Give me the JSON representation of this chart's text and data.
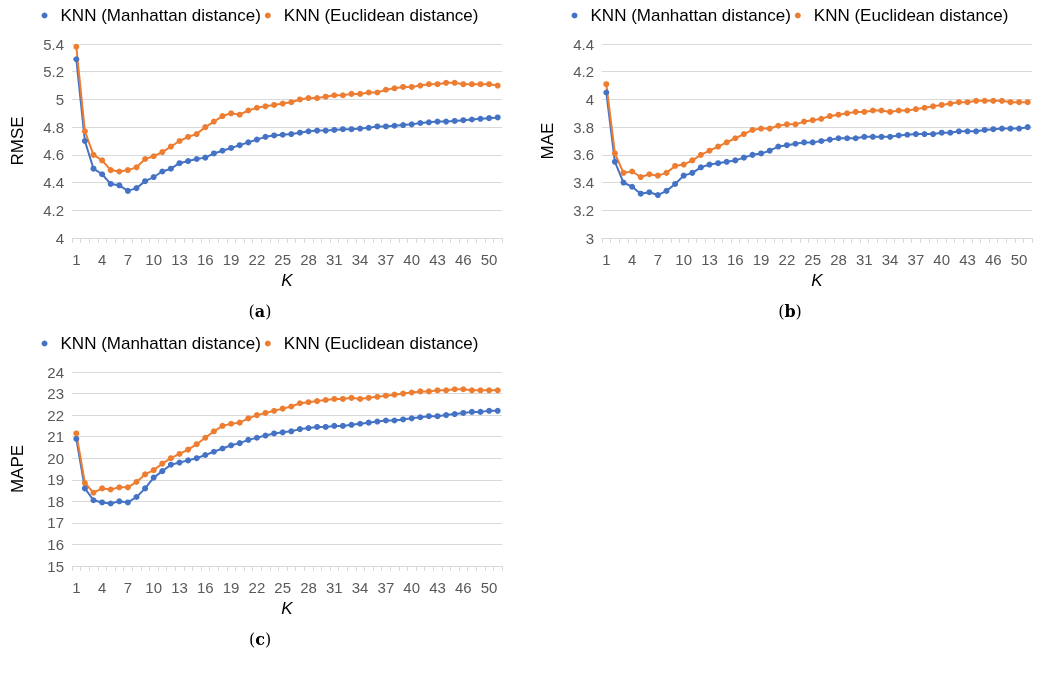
{
  "chart_data": [
    {
      "type": "line",
      "ylabel": "RMSE",
      "xlabel": "K",
      "annotations": [
        "(a)"
      ],
      "legend": "top",
      "grid": "y",
      "marker": "circle",
      "line_style": "solid",
      "categories": [
        "1",
        null,
        null,
        "4",
        null,
        null,
        "7",
        null,
        null,
        "10",
        null,
        null,
        "13",
        null,
        null,
        "16",
        null,
        null,
        "19",
        null,
        null,
        "22",
        null,
        null,
        "25",
        null,
        null,
        "28",
        null,
        null,
        "31",
        null,
        null,
        "34",
        null,
        null,
        "37",
        null,
        null,
        "40",
        null,
        null,
        "43",
        null,
        null,
        "46",
        null,
        null,
        "50",
        null
      ],
      "ylim": [
        4,
        5.4
      ],
      "yticks": [
        4,
        4.2,
        4.4,
        4.6,
        4.8,
        5,
        5.2,
        5.4
      ],
      "series": [
        {
          "name": "KNN (Manhattan distance)",
          "color": "#4472c4",
          "values": [
            5.29,
            4.7,
            4.5,
            4.46,
            4.39,
            4.38,
            4.34,
            4.36,
            4.41,
            4.44,
            4.48,
            4.5,
            4.54,
            4.555,
            4.57,
            4.58,
            4.61,
            4.63,
            4.65,
            4.67,
            4.69,
            4.71,
            4.73,
            4.74,
            4.745,
            4.75,
            4.76,
            4.77,
            4.775,
            4.775,
            4.78,
            4.785,
            4.785,
            4.79,
            4.795,
            4.805,
            4.805,
            4.81,
            4.815,
            4.82,
            4.83,
            4.835,
            4.84,
            4.84,
            4.845,
            4.85,
            4.855,
            4.86,
            4.865,
            4.87
          ]
        },
        {
          "name": "KNN (Euclidean distance)",
          "color": "#ed7d31",
          "values": [
            5.38,
            4.77,
            4.6,
            4.56,
            4.49,
            4.48,
            4.49,
            4.51,
            4.57,
            4.59,
            4.62,
            4.66,
            4.7,
            4.73,
            4.75,
            4.8,
            4.84,
            4.88,
            4.9,
            4.89,
            4.92,
            4.94,
            4.95,
            4.96,
            4.97,
            4.98,
            5.0,
            5.01,
            5.01,
            5.02,
            5.03,
            5.03,
            5.04,
            5.04,
            5.05,
            5.05,
            5.07,
            5.08,
            5.09,
            5.09,
            5.1,
            5.11,
            5.11,
            5.12,
            5.12,
            5.11,
            5.11,
            5.11,
            5.11,
            5.1
          ]
        }
      ]
    },
    {
      "type": "line",
      "ylabel": "MAE",
      "xlabel": "K",
      "annotations": [
        "(b)"
      ],
      "legend": "top",
      "grid": "y",
      "marker": "circle",
      "line_style": "solid",
      "categories": [
        "1",
        null,
        null,
        "4",
        null,
        null,
        "7",
        null,
        null,
        "10",
        null,
        null,
        "13",
        null,
        null,
        "16",
        null,
        null,
        "19",
        null,
        null,
        "22",
        null,
        null,
        "25",
        null,
        null,
        "28",
        null,
        null,
        "31",
        null,
        null,
        "34",
        null,
        null,
        "37",
        null,
        null,
        "40",
        null,
        null,
        "43",
        null,
        null,
        "46",
        null,
        null,
        "50",
        null
      ],
      "ylim": [
        3,
        4.4
      ],
      "yticks": [
        3,
        3.2,
        3.4,
        3.6,
        3.8,
        4,
        4.2,
        4.4
      ],
      "series": [
        {
          "name": "KNN (Manhattan distance)",
          "color": "#4472c4",
          "values": [
            4.05,
            3.55,
            3.4,
            3.37,
            3.32,
            3.33,
            3.31,
            3.34,
            3.39,
            3.45,
            3.47,
            3.51,
            3.53,
            3.54,
            3.55,
            3.56,
            3.58,
            3.6,
            3.61,
            3.63,
            3.66,
            3.67,
            3.68,
            3.69,
            3.69,
            3.7,
            3.71,
            3.72,
            3.72,
            3.72,
            3.73,
            3.73,
            3.73,
            3.73,
            3.74,
            3.745,
            3.75,
            3.75,
            3.75,
            3.76,
            3.76,
            3.77,
            3.77,
            3.77,
            3.78,
            3.785,
            3.79,
            3.79,
            3.79,
            3.8
          ]
        },
        {
          "name": "KNN (Euclidean distance)",
          "color": "#ed7d31",
          "values": [
            4.11,
            3.61,
            3.47,
            3.48,
            3.44,
            3.46,
            3.45,
            3.47,
            3.52,
            3.53,
            3.56,
            3.6,
            3.63,
            3.66,
            3.69,
            3.72,
            3.75,
            3.78,
            3.79,
            3.79,
            3.81,
            3.82,
            3.82,
            3.84,
            3.85,
            3.86,
            3.88,
            3.89,
            3.9,
            3.91,
            3.91,
            3.92,
            3.92,
            3.91,
            3.92,
            3.92,
            3.93,
            3.94,
            3.95,
            3.96,
            3.97,
            3.98,
            3.98,
            3.99,
            3.99,
            3.99,
            3.99,
            3.98,
            3.98,
            3.98
          ]
        }
      ]
    },
    {
      "type": "line",
      "ylabel": "MAPE",
      "xlabel": "K",
      "annotations": [
        "(c)"
      ],
      "legend": "top",
      "grid": "y",
      "marker": "circle",
      "line_style": "solid",
      "categories": [
        "1",
        null,
        null,
        "4",
        null,
        null,
        "7",
        null,
        null,
        "10",
        null,
        null,
        "13",
        null,
        null,
        "16",
        null,
        null,
        "19",
        null,
        null,
        "22",
        null,
        null,
        "25",
        null,
        null,
        "28",
        null,
        null,
        "31",
        null,
        null,
        "34",
        null,
        null,
        "37",
        null,
        null,
        "40",
        null,
        null,
        "43",
        null,
        null,
        "46",
        null,
        null,
        "50",
        null
      ],
      "ylim": [
        15,
        24
      ],
      "yticks": [
        15,
        16,
        17,
        18,
        19,
        20,
        21,
        22,
        23,
        24
      ],
      "series": [
        {
          "name": "KNN (Manhattan distance)",
          "color": "#4472c4",
          "values": [
            20.9,
            18.6,
            18.05,
            17.95,
            17.9,
            18.0,
            17.95,
            18.2,
            18.6,
            19.1,
            19.4,
            19.7,
            19.8,
            19.9,
            20.0,
            20.15,
            20.3,
            20.45,
            20.6,
            20.7,
            20.85,
            20.95,
            21.05,
            21.15,
            21.2,
            21.25,
            21.35,
            21.4,
            21.45,
            21.45,
            21.5,
            21.5,
            21.55,
            21.6,
            21.65,
            21.7,
            21.75,
            21.75,
            21.8,
            21.85,
            21.9,
            21.95,
            21.95,
            22.0,
            22.05,
            22.1,
            22.15,
            22.15,
            22.2,
            22.2
          ]
        },
        {
          "name": "KNN (Euclidean distance)",
          "color": "#ed7d31",
          "values": [
            21.15,
            18.85,
            18.4,
            18.6,
            18.55,
            18.65,
            18.65,
            18.9,
            19.25,
            19.45,
            19.75,
            20.0,
            20.2,
            20.4,
            20.65,
            20.95,
            21.25,
            21.5,
            21.6,
            21.65,
            21.85,
            22.0,
            22.1,
            22.2,
            22.3,
            22.4,
            22.55,
            22.6,
            22.65,
            22.7,
            22.75,
            22.75,
            22.8,
            22.75,
            22.8,
            22.85,
            22.9,
            22.95,
            23.0,
            23.05,
            23.1,
            23.1,
            23.15,
            23.15,
            23.2,
            23.2,
            23.15,
            23.15,
            23.15,
            23.15
          ]
        }
      ]
    }
  ]
}
